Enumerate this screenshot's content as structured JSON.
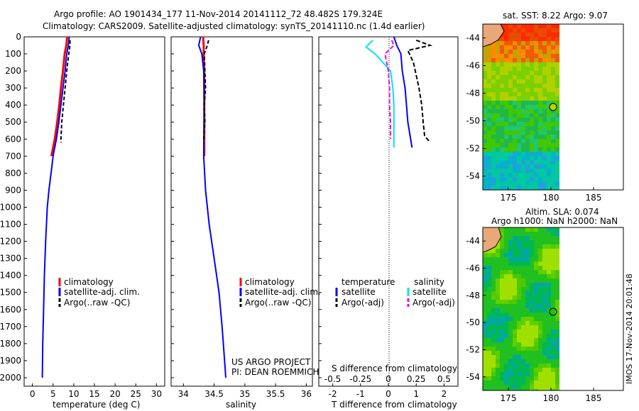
{
  "header": {
    "line1": "Argo profile: AO 1901434_177 11-Nov-2014 20141112_72 48.482S 179.324E",
    "line2": "Climatology: CARS2009. Satellite-adjusted climatology: synTS_20141110.nc (1.4d earlier)"
  },
  "side_text": "IMOS 17-Nov-2014 20:01:48",
  "colors": {
    "climatology": "#ff0000",
    "satellite": "#0000ff",
    "argo": "#000000",
    "sal_satellite": "#00e5ee",
    "sal_argo": "#ee00ee",
    "land": "#e8a87a"
  },
  "chart_data": [
    {
      "type": "line",
      "xlabel": "temperature (deg C)",
      "xticks": [
        "0",
        "5",
        "10",
        "15",
        "20",
        "25",
        "30"
      ],
      "xlim": [
        -2,
        32
      ],
      "ylim": [
        0,
        2050
      ],
      "yticks": [
        "0",
        "100",
        "200",
        "300",
        "400",
        "500",
        "600",
        "700",
        "800",
        "900",
        "1000",
        "1100",
        "1200",
        "1300",
        "1400",
        "1500",
        "1600",
        "1700",
        "1800",
        "1900",
        "2000"
      ],
      "legend": [
        "climatology",
        "satellite-adj. clim.",
        "Argo(..raw -QC)"
      ],
      "series": [
        {
          "role": "climatology",
          "points": [
            [
              8.4,
              0
            ],
            [
              8.2,
              50
            ],
            [
              7.8,
              100
            ],
            [
              7.4,
              200
            ],
            [
              6.9,
              300
            ],
            [
              6.5,
              400
            ],
            [
              6.0,
              500
            ],
            [
              5.4,
              600
            ],
            [
              4.6,
              700
            ]
          ]
        },
        {
          "role": "satellite",
          "points": [
            [
              8.9,
              0
            ],
            [
              8.7,
              50
            ],
            [
              8.3,
              100
            ],
            [
              7.9,
              200
            ],
            [
              7.4,
              300
            ],
            [
              6.9,
              400
            ],
            [
              6.4,
              500
            ],
            [
              5.8,
              600
            ],
            [
              5.0,
              700
            ],
            [
              4.5,
              800
            ],
            [
              4.0,
              900
            ],
            [
              3.6,
              1000
            ],
            [
              3.2,
              1200
            ],
            [
              2.9,
              1400
            ],
            [
              2.7,
              1600
            ],
            [
              2.5,
              1800
            ],
            [
              2.4,
              2000
            ]
          ]
        },
        {
          "role": "argo",
          "points": [
            [
              9.1,
              20
            ],
            [
              9.1,
              50
            ],
            [
              8.8,
              100
            ],
            [
              8.3,
              200
            ],
            [
              7.9,
              300
            ],
            [
              7.5,
              400
            ],
            [
              7.1,
              500
            ],
            [
              6.9,
              600
            ],
            [
              6.9,
              620
            ]
          ]
        }
      ]
    },
    {
      "type": "line",
      "xlabel": "salinity",
      "xticks": [
        "34",
        "34.5",
        "35",
        "35.5",
        "36"
      ],
      "xlim": [
        33.8,
        36.1
      ],
      "ylim": [
        0,
        2050
      ],
      "legend": [
        "climatology",
        "satellite-adj. clim.",
        "Argo(..raw -QC)"
      ],
      "series": [
        {
          "role": "climatology",
          "points": [
            [
              34.32,
              0
            ],
            [
              34.33,
              50
            ],
            [
              34.33,
              100
            ],
            [
              34.34,
              200
            ],
            [
              34.34,
              400
            ],
            [
              34.34,
              600
            ],
            [
              34.34,
              700
            ]
          ]
        },
        {
          "role": "satellite",
          "points": [
            [
              34.28,
              0
            ],
            [
              34.25,
              50
            ],
            [
              34.3,
              100
            ],
            [
              34.33,
              200
            ],
            [
              34.34,
              400
            ],
            [
              34.33,
              700
            ],
            [
              34.36,
              900
            ],
            [
              34.42,
              1100
            ],
            [
              34.5,
              1300
            ],
            [
              34.58,
              1500
            ],
            [
              34.63,
              1700
            ],
            [
              34.67,
              1900
            ],
            [
              34.69,
              2000
            ]
          ]
        },
        {
          "role": "argo",
          "points": [
            [
              34.41,
              20
            ],
            [
              34.39,
              50
            ],
            [
              34.34,
              100
            ],
            [
              34.35,
              200
            ],
            [
              34.36,
              300
            ],
            [
              34.34,
              400
            ],
            [
              34.35,
              500
            ],
            [
              34.33,
              600
            ]
          ]
        }
      ]
    },
    {
      "type": "line",
      "xlabel": "T difference from climatology",
      "xticks": [
        "-2",
        "-1",
        "0",
        "1",
        "2"
      ],
      "xlim": [
        -2.5,
        2.5
      ],
      "top_xlabel": "S difference from climatology",
      "top_xticks": [
        "-0.5",
        "-0.25",
        "0",
        "0.25",
        "0.5"
      ],
      "ylim": [
        0,
        2050
      ],
      "legend": {
        "temperature_title": "temperature",
        "salinity_title": "salinity",
        "temperature": [
          "satellite",
          "Argo(-adj)"
        ],
        "salinity": [
          "satellite",
          "Argo(-adj)"
        ]
      },
      "series": [
        {
          "role": "t_satellite",
          "points": [
            [
              0.2,
              0
            ],
            [
              0.3,
              50
            ],
            [
              0.45,
              100
            ],
            [
              0.5,
              200
            ],
            [
              0.6,
              300
            ],
            [
              0.65,
              400
            ],
            [
              0.7,
              500
            ],
            [
              0.8,
              600
            ],
            [
              0.85,
              650
            ]
          ]
        },
        {
          "role": "t_argo",
          "points": [
            [
              1.0,
              20
            ],
            [
              1.5,
              50
            ],
            [
              0.7,
              80
            ],
            [
              0.9,
              150
            ],
            [
              1.1,
              300
            ],
            [
              1.2,
              400
            ],
            [
              1.25,
              500
            ],
            [
              1.3,
              580
            ],
            [
              1.5,
              620
            ]
          ]
        },
        {
          "role": "s_satellite",
          "points": [
            [
              -0.14,
              20
            ],
            [
              -0.2,
              60
            ],
            [
              -0.12,
              100
            ],
            [
              0.02,
              200
            ],
            [
              0.04,
              300
            ],
            [
              0.05,
              400
            ],
            [
              0.05,
              500
            ],
            [
              0.05,
              600
            ],
            [
              0.05,
              650
            ]
          ]
        },
        {
          "role": "s_argo",
          "points": [
            [
              0.03,
              20
            ],
            [
              0.05,
              50
            ],
            [
              -0.03,
              100
            ],
            [
              0,
              200
            ],
            [
              0.01,
              300
            ],
            [
              0.01,
              400
            ],
            [
              0.02,
              500
            ],
            [
              0.02,
              600
            ]
          ]
        }
      ]
    }
  ],
  "maps": [
    {
      "title": "sat. SST: 8.22  Argo: 9.07",
      "subtitle": "",
      "xticks": [
        "175",
        "180",
        "185"
      ],
      "yticks": [
        "-44",
        "-46",
        "-48",
        "-50",
        "-52",
        "-54"
      ]
    },
    {
      "title": "Altim. SLA: 0.074",
      "subtitle": "Argo h1000: NaN h2000: NaN",
      "xticks": [
        "175",
        "180",
        "185"
      ],
      "yticks": [
        "-44",
        "-46",
        "-48",
        "-50",
        "-52",
        "-54"
      ]
    }
  ],
  "bottom_notes": [
    "US ARGO PROJECT",
    "PI: DEAN ROEMMICH"
  ]
}
